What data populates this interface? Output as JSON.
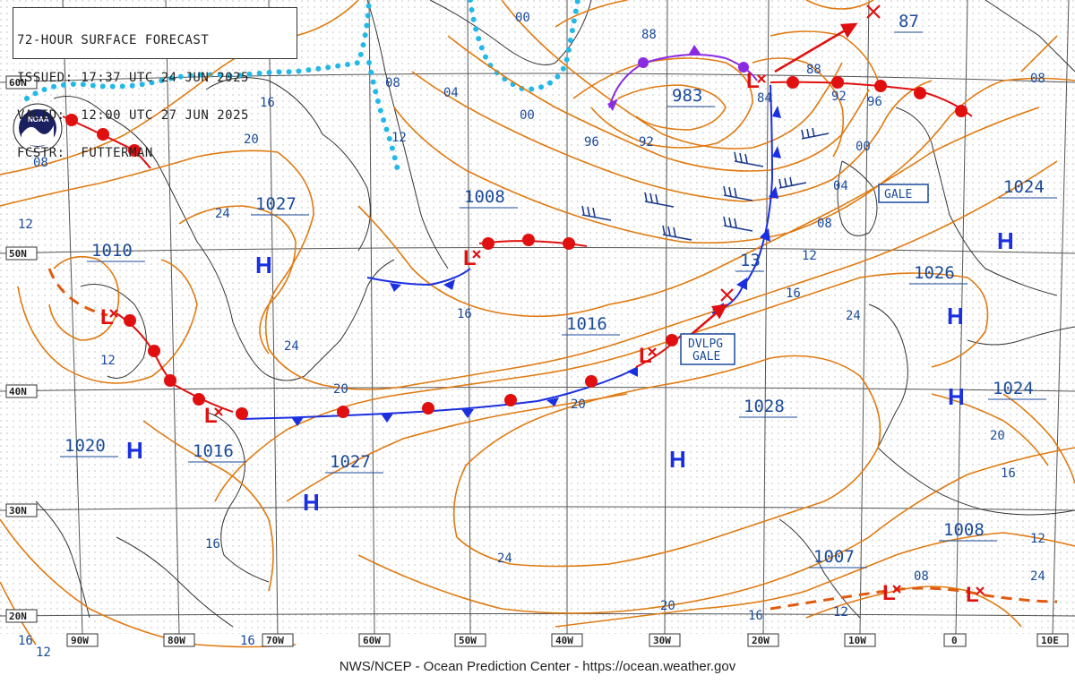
{
  "header": {
    "line1": "72-HOUR SURFACE FORECAST",
    "line2": "ISSUED: 17:37 UTC 24 JUN 2025",
    "line3": "VALID:  12:00 UTC 27 JUN 2025",
    "line4": "FCSTR:  FUTTERMAN"
  },
  "logo": {
    "text": "NOAA"
  },
  "footer": {
    "credit": "NWS/NCEP - Ocean Prediction Center - https://ocean.weather.gov"
  },
  "lat_labels": [
    "60N",
    "50N",
    "40N",
    "30N",
    "20N"
  ],
  "lon_labels": [
    "90W",
    "80W",
    "70W",
    "60W",
    "50W",
    "40W",
    "30W",
    "20W",
    "10W",
    "0",
    "10E"
  ],
  "pressure_centers": [
    {
      "type": "H",
      "value": "1027"
    },
    {
      "type": "H",
      "value": "1010"
    },
    {
      "type": "L",
      "value": "1008"
    },
    {
      "type": "L",
      "value": "983"
    },
    {
      "type": "L",
      "value": "87"
    },
    {
      "type": "H",
      "value": "1024"
    },
    {
      "type": "H",
      "value": "1026"
    },
    {
      "type": "H",
      "value": "1024"
    },
    {
      "type": "L",
      "value": "13"
    },
    {
      "type": "L",
      "value": "1016"
    },
    {
      "type": "H",
      "value": "1028"
    },
    {
      "type": "H",
      "value": "1020"
    },
    {
      "type": "L",
      "value": "1016"
    },
    {
      "type": "H",
      "value": "1027"
    },
    {
      "type": "L",
      "value": "1007"
    },
    {
      "type": "L",
      "value": "1008"
    }
  ],
  "isobar_labels": [
    "00",
    "88",
    "08",
    "04",
    "00",
    "16",
    "20",
    "96",
    "92",
    "88",
    "92",
    "96",
    "08",
    "84",
    "00",
    "04",
    "08",
    "12",
    "24",
    "12",
    "16",
    "24",
    "16",
    "20",
    "20",
    "24",
    "16",
    "20",
    "24",
    "20",
    "16",
    "16",
    "12",
    "08",
    "12",
    "12",
    "16",
    "12",
    "16",
    "08",
    "24",
    "12"
  ],
  "warning_boxes": [
    {
      "line1": "GALE",
      "line2": ""
    },
    {
      "line1": "DVLPG",
      "line2": "GALE"
    }
  ]
}
